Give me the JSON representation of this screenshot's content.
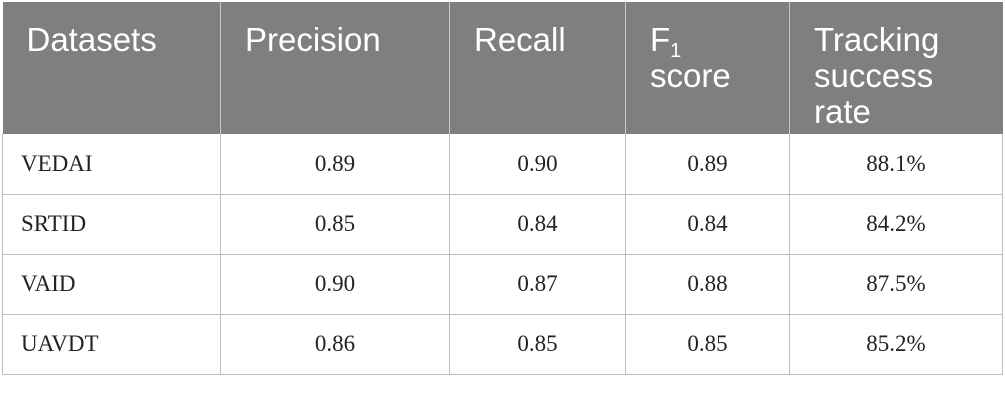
{
  "table": {
    "headers": {
      "datasets": "Datasets",
      "precision": "Precision",
      "recall": "Recall",
      "f1_base": "F",
      "f1_sub": "1",
      "f1_rest": "score",
      "tracking_line1": "Tracking",
      "tracking_line2": "success",
      "tracking_line3": "rate"
    },
    "rows": [
      {
        "dataset": "VEDAI",
        "precision": "0.89",
        "recall": "0.90",
        "f1": "0.89",
        "tracking": "88.1%"
      },
      {
        "dataset": "SRTID",
        "precision": "0.85",
        "recall": "0.84",
        "f1": "0.84",
        "tracking": "84.2%"
      },
      {
        "dataset": "VAID",
        "precision": "0.90",
        "recall": "0.87",
        "f1": "0.88",
        "tracking": "87.5%"
      },
      {
        "dataset": "UAVDT",
        "precision": "0.86",
        "recall": "0.85",
        "f1": "0.85",
        "tracking": "85.2%"
      }
    ]
  }
}
